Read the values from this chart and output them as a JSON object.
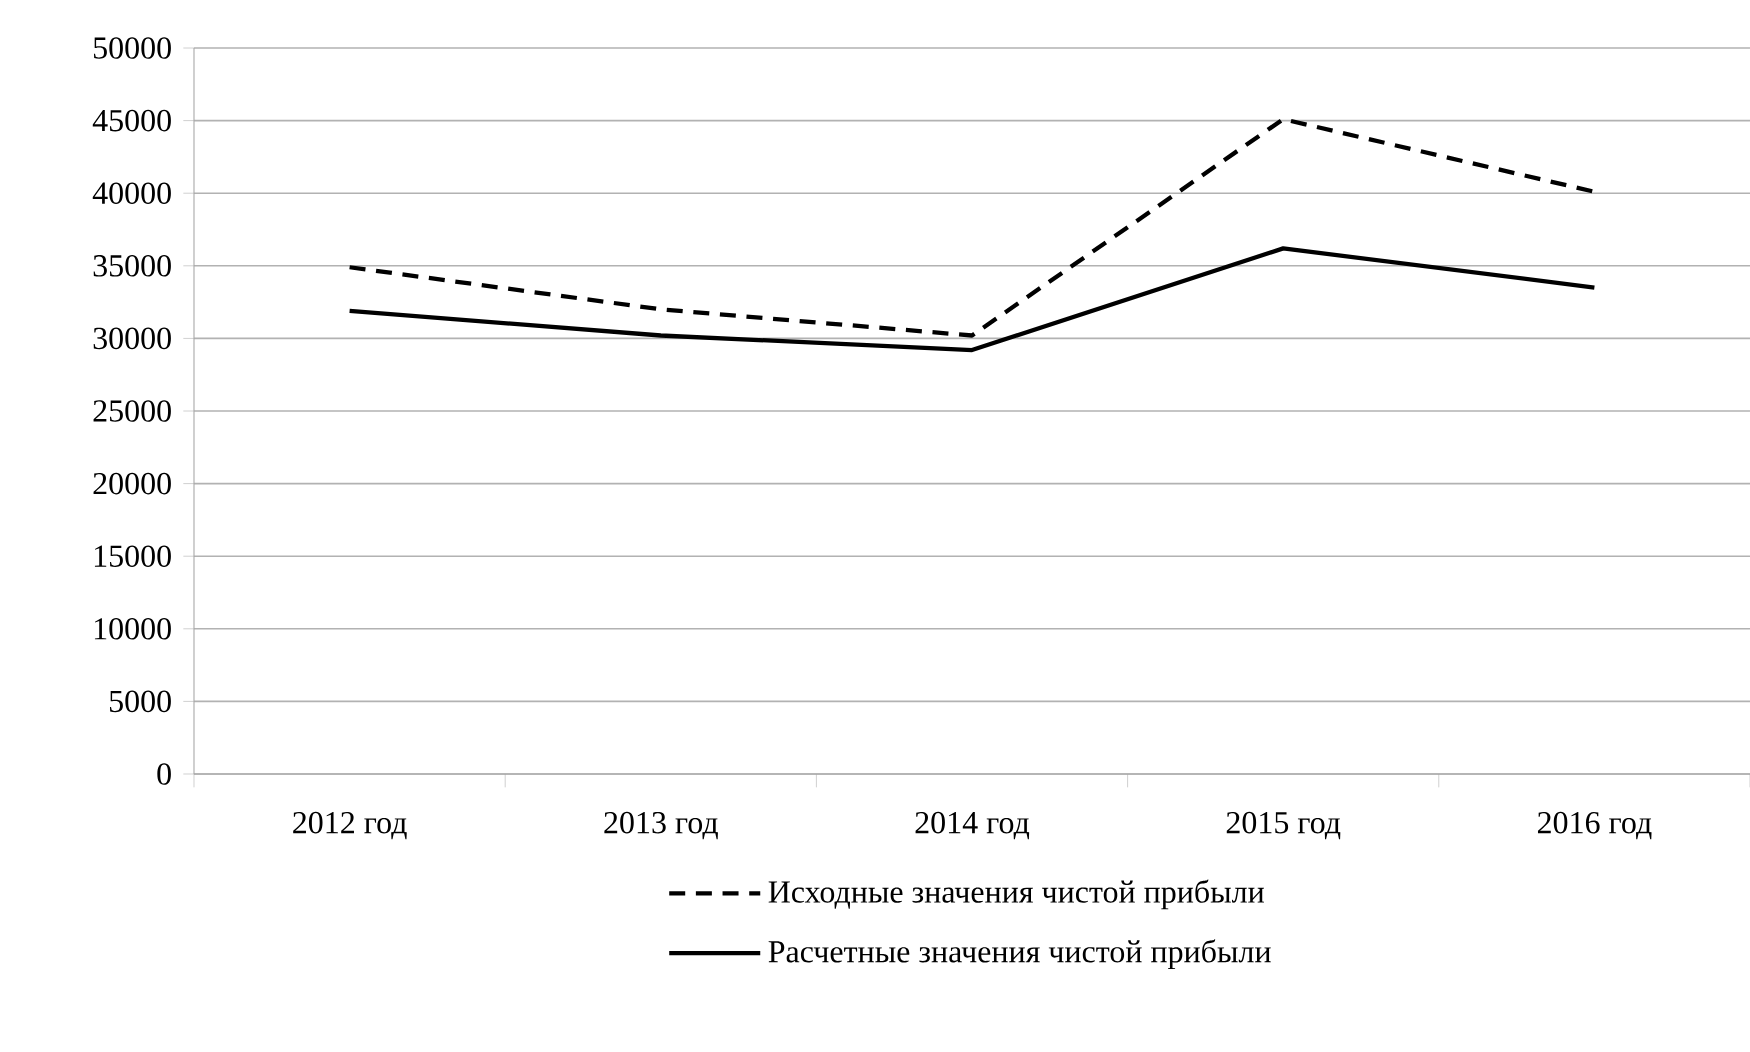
{
  "chart_data": {
    "type": "line",
    "categories": [
      "2012 год",
      "2013 год",
      "2014 год",
      "2015 год",
      "2016 год"
    ],
    "series": [
      {
        "name": "Исходные значения чистой прибыли",
        "color": "#000000",
        "line_style": "dashed",
        "values": [
          34900,
          32000,
          30200,
          45100,
          40100
        ]
      },
      {
        "name": "Расчетные значения чистой прибыли",
        "color": "#000000",
        "line_style": "solid",
        "values": [
          31900,
          30200,
          29200,
          36200,
          33500
        ]
      }
    ],
    "ylim": [
      0,
      50000
    ],
    "yticks": [
      0,
      5000,
      10000,
      15000,
      20000,
      25000,
      30000,
      35000,
      40000,
      45000,
      50000
    ],
    "grid": "y",
    "legend": "bottom",
    "marker": "none"
  }
}
